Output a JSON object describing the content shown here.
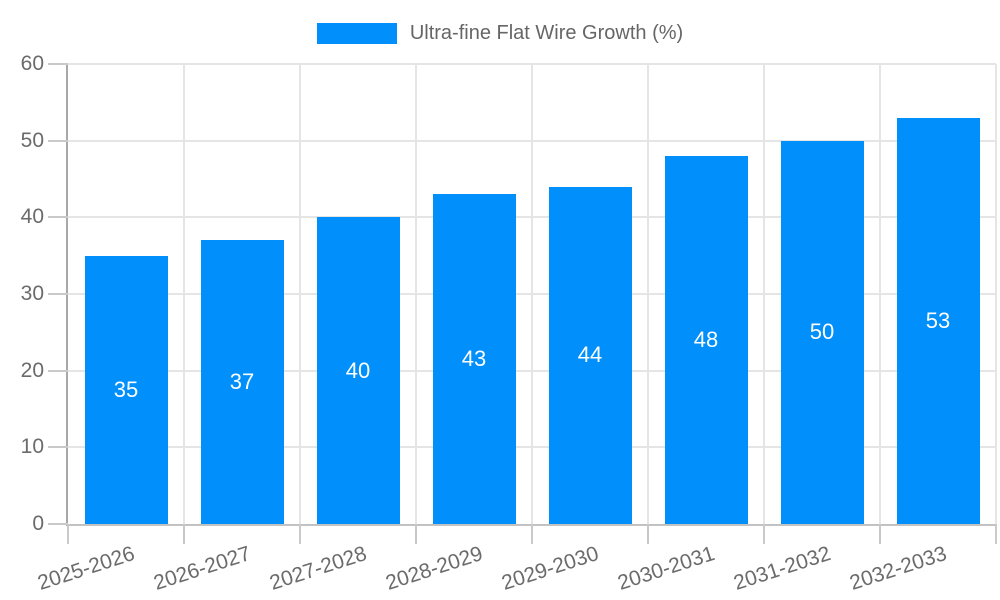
{
  "chart_data": {
    "type": "bar",
    "title": "",
    "legend_entries": [
      "Ultra-fine Flat Wire Growth (%)"
    ],
    "legend_position": "top-center",
    "categories": [
      "2025-2026",
      "2026-2027",
      "2027-2028",
      "2028-2029",
      "2029-2030",
      "2030-2031",
      "2031-2032",
      "2032-2033"
    ],
    "values": [
      35,
      37,
      40,
      43,
      44,
      48,
      50,
      53
    ],
    "value_labels_position": "inside-center",
    "xlabel": "",
    "ylabel": "",
    "ylim": [
      0,
      60
    ],
    "yticks": [
      0,
      10,
      20,
      30,
      40,
      50,
      60
    ],
    "grid": true,
    "xtick_rotation_deg": -18,
    "style": {
      "bar_color": "#008FFB",
      "grid_color": "#e5e5e5",
      "tick_color": "#c9c9c9",
      "y_axis_line_color": "#a8a8a8",
      "x_axis_line_color": "#c2c2c2",
      "axis_text_color": "#6b6b6b",
      "legend_text_color": "#666666",
      "value_text_color": "#ffffff"
    }
  }
}
